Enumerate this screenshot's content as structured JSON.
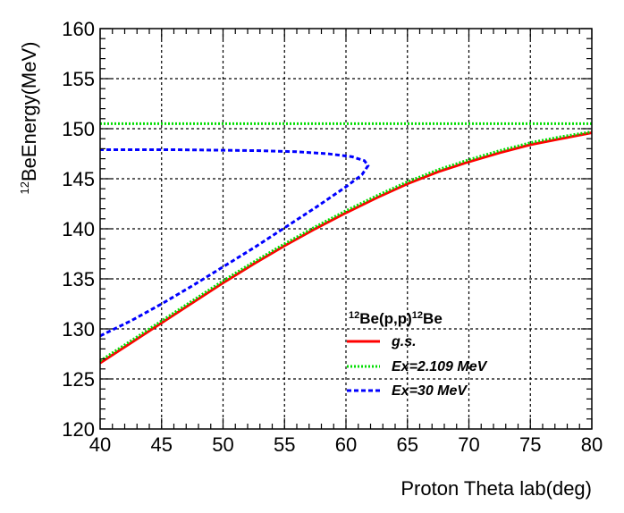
{
  "chart_data": {
    "type": "line",
    "xlabel": "Proton Theta lab(deg)",
    "ylabel": {
      "sup": "12",
      "text": "BeEnergy(MeV)"
    },
    "xlim": [
      40,
      80
    ],
    "ylim": [
      120,
      160
    ],
    "xticks": [
      40,
      45,
      50,
      55,
      60,
      65,
      70,
      75,
      80
    ],
    "yticks": [
      120,
      125,
      130,
      135,
      140,
      145,
      150,
      155,
      160
    ],
    "grid": true,
    "legend": {
      "title": {
        "sup1": "12",
        "mid": "Be(p,p)",
        "sup2": "12",
        "end": "Be"
      },
      "placement": "bottom-center",
      "entries": [
        "g.s.",
        "Ex=2.109 MeV",
        "Ex=30 MeV"
      ]
    },
    "series": [
      {
        "name": "g.s.",
        "color": "#ff0000",
        "style": "solid",
        "x": [
          40,
          42.5,
          45,
          47.5,
          50,
          52.5,
          55,
          57.5,
          60,
          62.5,
          65,
          67.5,
          70,
          72.5,
          75,
          77.5,
          80
        ],
        "y": [
          126.6,
          128.6,
          130.6,
          132.6,
          134.6,
          136.5,
          138.3,
          140.0,
          141.6,
          143.1,
          144.5,
          145.7,
          146.7,
          147.6,
          148.4,
          149.0,
          149.6
        ]
      },
      {
        "name": "Ex=2.109 MeV",
        "color": "#00dd00",
        "style": "dotted",
        "x": [
          40,
          42.5,
          45,
          47.5,
          50,
          52.5,
          55,
          57.5,
          60,
          62.5,
          65,
          67.5,
          70,
          72.5,
          75,
          77.5,
          80
        ],
        "y": [
          126.8,
          128.8,
          130.8,
          132.8,
          134.8,
          136.7,
          138.5,
          140.2,
          141.8,
          143.3,
          144.7,
          145.9,
          146.9,
          147.8,
          148.6,
          149.2,
          149.7
        ],
        "horizontal_line": 150.5
      },
      {
        "name": "Ex=30 MeV",
        "color": "#0000ff",
        "style": "dashed",
        "x": [
          40,
          42.5,
          45,
          47.5,
          50,
          52.5,
          55,
          57.5,
          60,
          61.3,
          61.8,
          61.5,
          60.5,
          58.5,
          56,
          53,
          50,
          46,
          43,
          40
        ],
        "y": [
          129.3,
          130.8,
          132.5,
          134.3,
          136.2,
          138.1,
          140.1,
          142.1,
          144.2,
          145.4,
          146.3,
          146.8,
          147.2,
          147.5,
          147.7,
          147.8,
          147.85,
          147.9,
          147.9,
          147.9
        ]
      }
    ]
  }
}
